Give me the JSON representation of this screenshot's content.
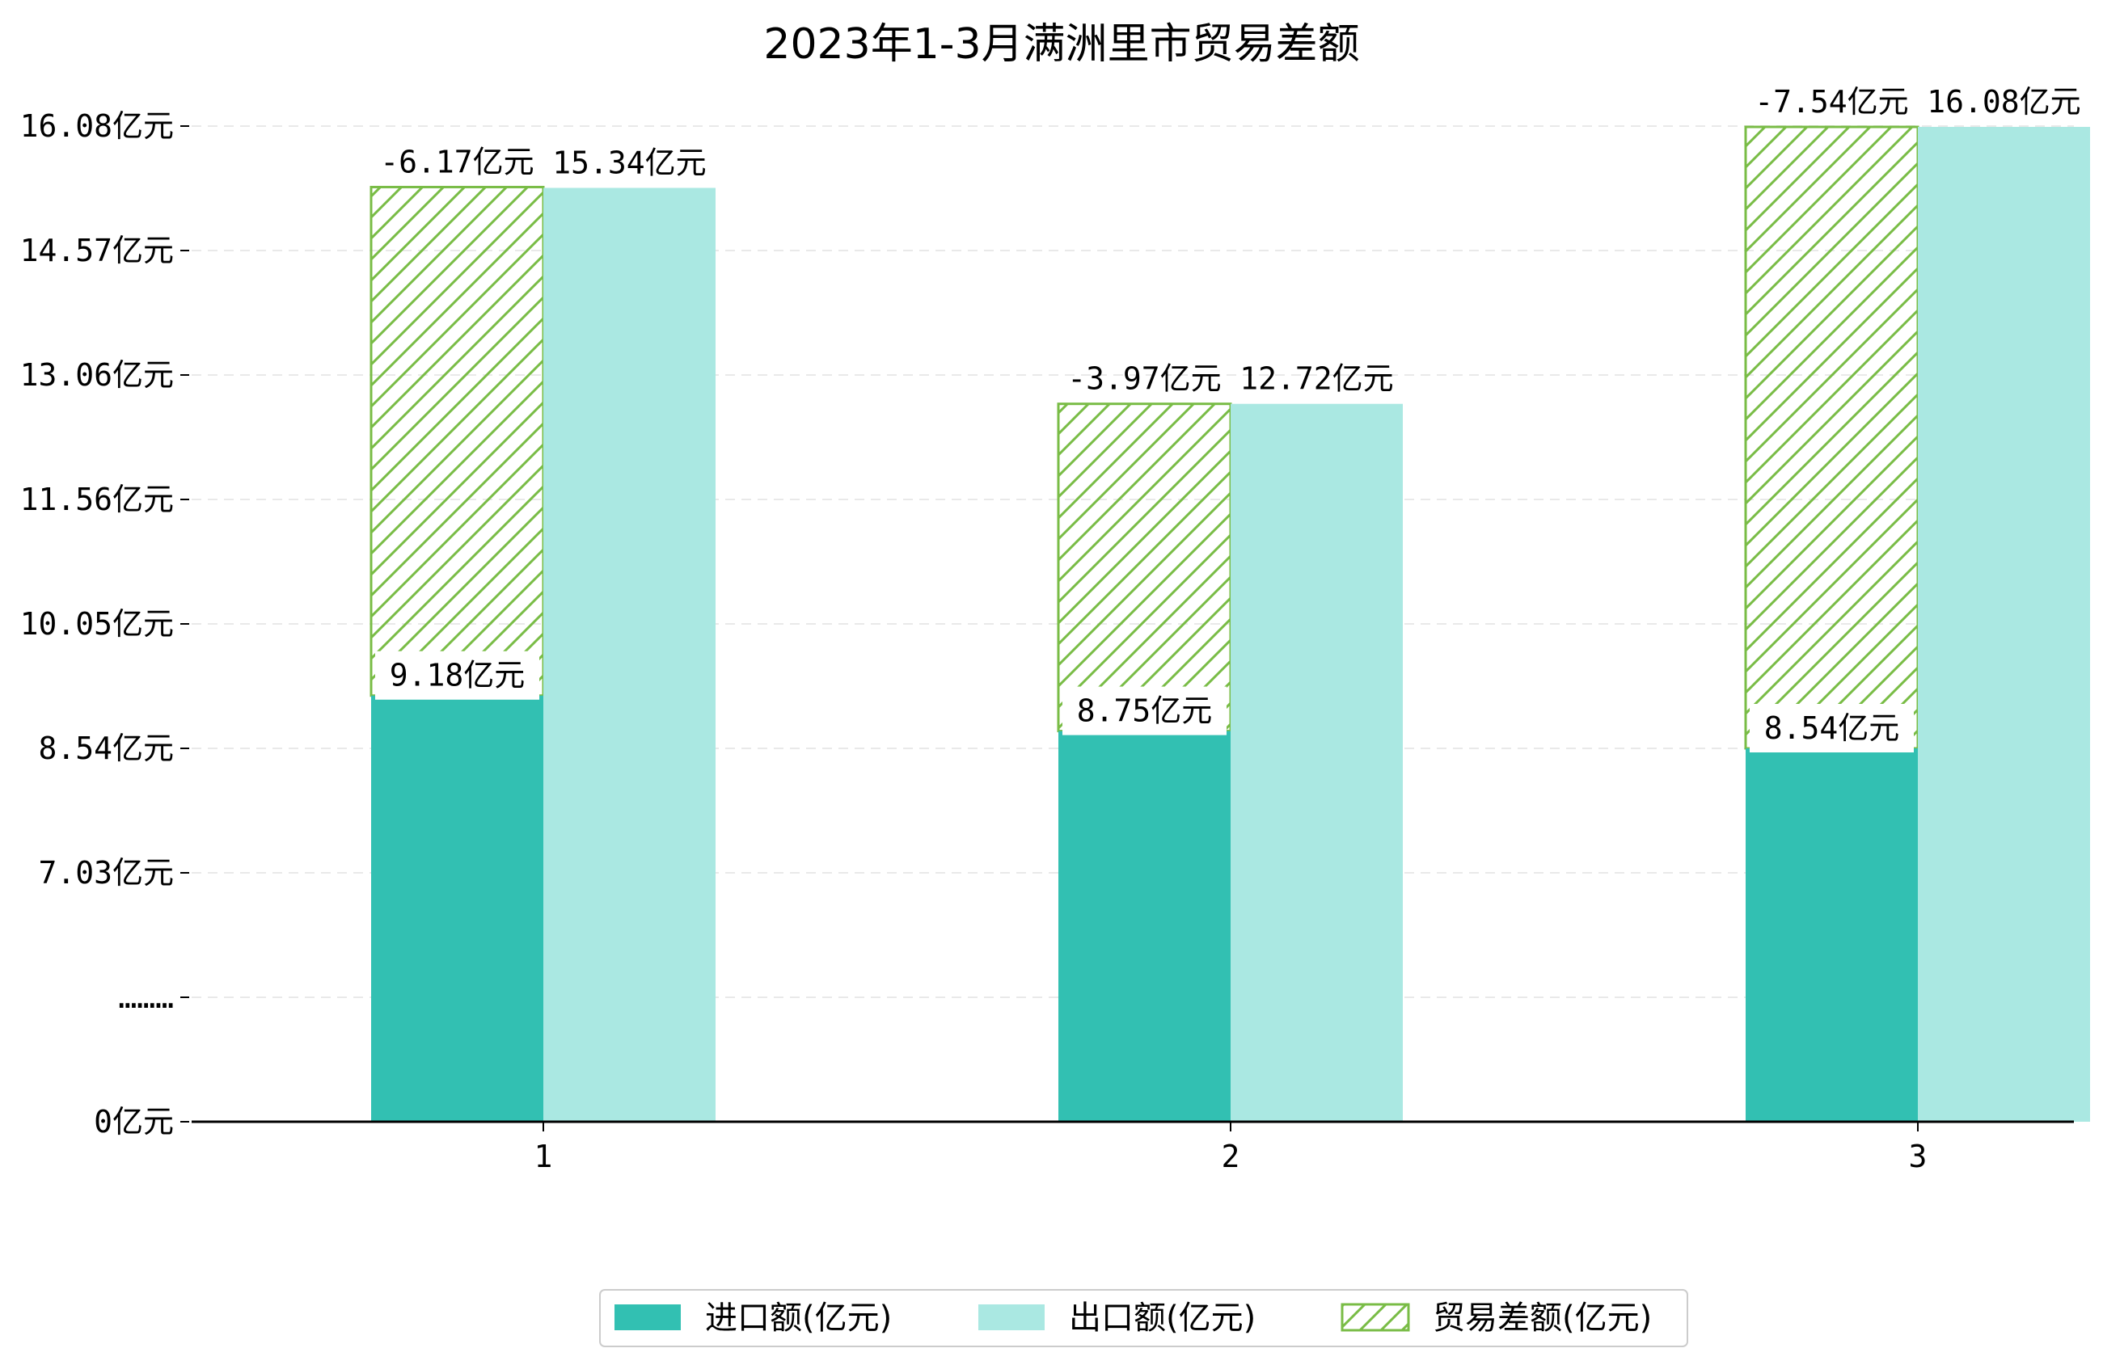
{
  "chart_data": {
    "type": "bar",
    "title": "2023年1-3月满洲里市贸易差额",
    "categories": [
      "1",
      "2",
      "3"
    ],
    "series": [
      {
        "name": "进口额(亿元)",
        "values": [
          9.18,
          8.75,
          8.54
        ],
        "value_labels": [
          "9.18亿元",
          "8.75亿元",
          "8.54亿元"
        ],
        "color": "#32c0b2"
      },
      {
        "name": "出口额(亿元)",
        "values": [
          15.34,
          12.72,
          16.08
        ],
        "value_labels": [
          "15.34亿元",
          "12.72亿元",
          "16.08亿元"
        ],
        "color": "#aae8e2"
      },
      {
        "name": "贸易差额(亿元)",
        "values": [
          -6.17,
          -3.97,
          -7.54
        ],
        "value_labels": [
          "-6.17亿元",
          "-3.97亿元",
          "-7.54亿元"
        ],
        "color": "#79bc46",
        "pattern": "hatch"
      }
    ],
    "y_ticks": [
      "0亿元",
      "………",
      "7.03亿元",
      "8.54亿元",
      "10.05亿元",
      "11.56亿元",
      "13.06亿元",
      "14.57亿元",
      "16.08亿元"
    ],
    "y_axis_break": "………",
    "xlabel": "",
    "ylabel": "",
    "grid": "horizontal dashed",
    "legend_position": "bottom-center"
  }
}
